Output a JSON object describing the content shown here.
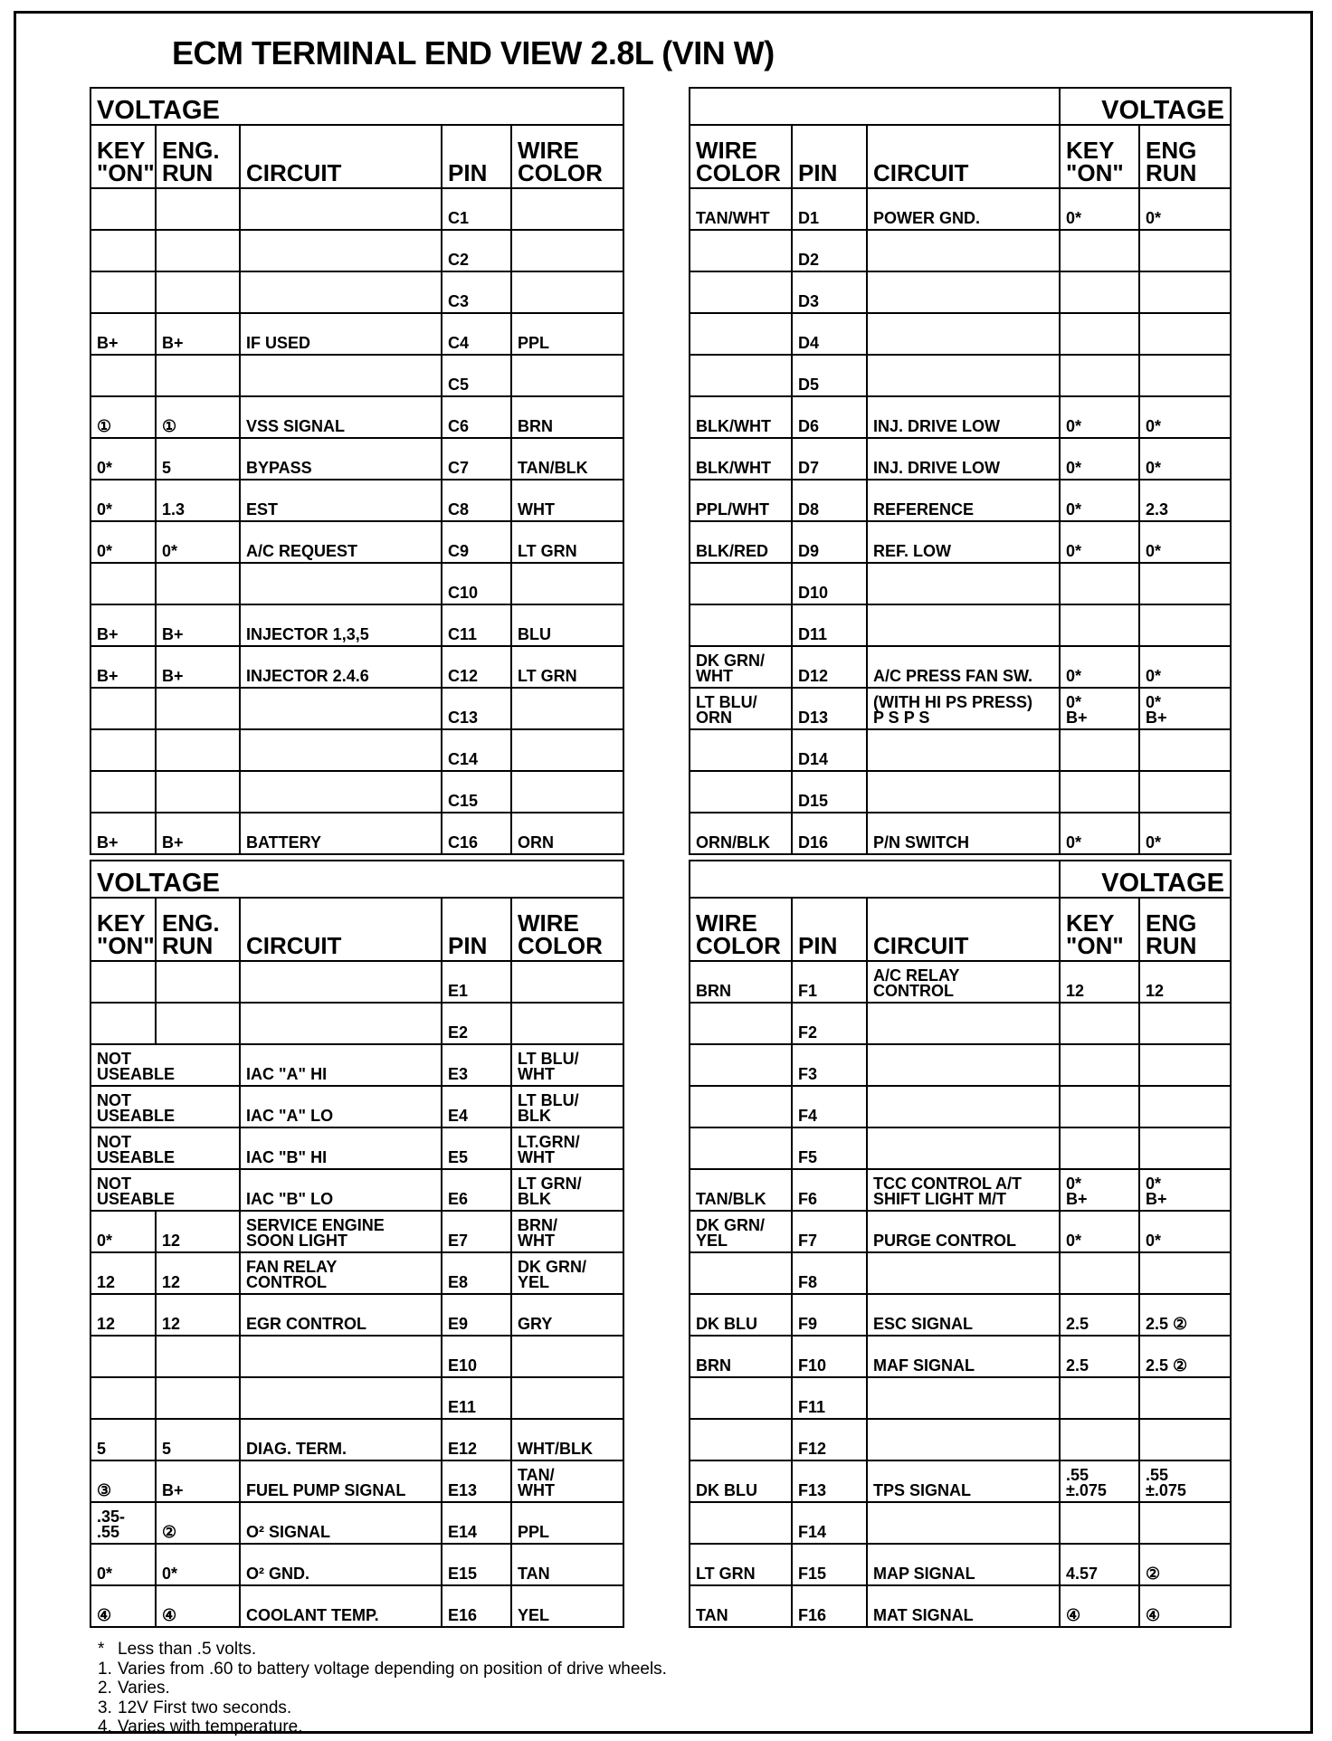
{
  "title": "ECM TERMINAL END VIEW 2.8L (VIN W)",
  "tables": [
    {
      "group_label": "VOLTAGE",
      "columns": [
        "KEY\n\"ON\"",
        "ENG.\nRUN",
        "CIRCUIT",
        "PIN",
        "WIRE\nCOLOR"
      ],
      "rows": [
        [
          "",
          "",
          "",
          "C1",
          ""
        ],
        [
          "",
          "",
          "",
          "C2",
          ""
        ],
        [
          "",
          "",
          "",
          "C3",
          ""
        ],
        [
          "B+",
          "B+",
          "IF USED",
          "C4",
          "PPL"
        ],
        [
          "",
          "",
          "",
          "C5",
          ""
        ],
        [
          "①",
          "①",
          "VSS SIGNAL",
          "C6",
          "BRN"
        ],
        [
          "0*",
          "5",
          "BYPASS",
          "C7",
          "TAN/BLK"
        ],
        [
          "0*",
          "1.3",
          "EST",
          "C8",
          "WHT"
        ],
        [
          "0*",
          "0*",
          "A/C REQUEST",
          "C9",
          "LT GRN"
        ],
        [
          "",
          "",
          "",
          "C10",
          ""
        ],
        [
          "B+",
          "B+",
          "INJECTOR 1,3,5",
          "C11",
          "BLU"
        ],
        [
          "B+",
          "B+",
          "INJECTOR 2.4.6",
          "C12",
          "LT GRN"
        ],
        [
          "",
          "",
          "",
          "C13",
          ""
        ],
        [
          "",
          "",
          "",
          "C14",
          ""
        ],
        [
          "",
          "",
          "",
          "C15",
          ""
        ],
        [
          "B+",
          "B+",
          "BATTERY",
          "C16",
          "ORN"
        ]
      ]
    },
    {
      "group_label": "VOLTAGE",
      "columns": [
        "WIRE\nCOLOR",
        "PIN",
        "CIRCUIT",
        "KEY\n\"ON\"",
        "ENG\nRUN"
      ],
      "rows": [
        [
          "TAN/WHT",
          "D1",
          "POWER GND.",
          "0*",
          "0*"
        ],
        [
          "",
          "D2",
          "",
          "",
          ""
        ],
        [
          "",
          "D3",
          "",
          "",
          ""
        ],
        [
          "",
          "D4",
          "",
          "",
          ""
        ],
        [
          "",
          "D5",
          "",
          "",
          ""
        ],
        [
          "BLK/WHT",
          "D6",
          "INJ. DRIVE LOW",
          "0*",
          "0*"
        ],
        [
          "BLK/WHT",
          "D7",
          "INJ. DRIVE LOW",
          "0*",
          "0*"
        ],
        [
          "PPL/WHT",
          "D8",
          "REFERENCE",
          "0*",
          "2.3"
        ],
        [
          "BLK/RED",
          "D9",
          "REF. LOW",
          "0*",
          "0*"
        ],
        [
          "",
          "D10",
          "",
          "",
          ""
        ],
        [
          "",
          "D11",
          "",
          "",
          ""
        ],
        [
          "DK GRN/\nWHT",
          "D12",
          "A/C PRESS FAN SW.",
          "0*",
          "0*"
        ],
        [
          "LT BLU/\nORN",
          "D13",
          "(WITH HI PS PRESS)\nP S P S",
          "0*\nB+",
          "0*\nB+"
        ],
        [
          "",
          "D14",
          "",
          "",
          ""
        ],
        [
          "",
          "D15",
          "",
          "",
          ""
        ],
        [
          "ORN/BLK",
          "D16",
          "P/N SWITCH",
          "0*",
          "0*"
        ]
      ]
    },
    {
      "group_label": "VOLTAGE",
      "columns": [
        "KEY\n\"ON\"",
        "ENG.\nRUN",
        "CIRCUIT",
        "PIN",
        "WIRE\nCOLOR"
      ],
      "rows": [
        [
          "",
          "",
          "",
          "E1",
          ""
        ],
        [
          "",
          "",
          "",
          "E2",
          ""
        ],
        [
          "NOT\nUSEABLE",
          "IAC \"A\" HI",
          "E3",
          "LT BLU/\nWHT"
        ],
        [
          "NOT\nUSEABLE",
          "IAC \"A\" LO",
          "E4",
          "LT BLU/\nBLK"
        ],
        [
          "NOT\nUSEABLE",
          "IAC \"B\" HI",
          "E5",
          "LT.GRN/\nWHT"
        ],
        [
          "NOT\nUSEABLE",
          "IAC \"B\" LO",
          "E6",
          "LT GRN/\nBLK"
        ],
        [
          "0*",
          "12",
          "SERVICE ENGINE\nSOON LIGHT",
          "E7",
          "BRN/\nWHT"
        ],
        [
          "12",
          "12",
          "FAN RELAY\nCONTROL",
          "E8",
          "DK GRN/\nYEL"
        ],
        [
          "12",
          "12",
          "EGR CONTROL",
          "E9",
          "GRY"
        ],
        [
          "",
          "",
          "",
          "E10",
          ""
        ],
        [
          "",
          "",
          "",
          "E11",
          ""
        ],
        [
          "5",
          "5",
          "DIAG. TERM.",
          "E12",
          "WHT/BLK"
        ],
        [
          "③",
          "B+",
          "FUEL PUMP SIGNAL",
          "E13",
          "TAN/\nWHT"
        ],
        [
          ".35-\n.55",
          "②",
          "O² SIGNAL",
          "E14",
          "PPL"
        ],
        [
          "0*",
          "0*",
          "O² GND.",
          "E15",
          "TAN"
        ],
        [
          "④",
          "④",
          "COOLANT TEMP.",
          "E16",
          "YEL"
        ]
      ]
    },
    {
      "group_label": "VOLTAGE",
      "columns": [
        "WIRE\nCOLOR",
        "PIN",
        "CIRCUIT",
        "KEY\n\"ON\"",
        "ENG\nRUN"
      ],
      "rows": [
        [
          "BRN",
          "F1",
          "A/C RELAY\nCONTROL",
          "12",
          "12"
        ],
        [
          "",
          "F2",
          "",
          "",
          ""
        ],
        [
          "",
          "F3",
          "",
          "",
          ""
        ],
        [
          "",
          "F4",
          "",
          "",
          ""
        ],
        [
          "",
          "F5",
          "",
          "",
          ""
        ],
        [
          "TAN/BLK",
          "F6",
          "TCC CONTROL A/T\nSHIFT LIGHT M/T",
          "0*\nB+",
          "0*\nB+"
        ],
        [
          "DK GRN/\nYEL",
          "F7",
          "PURGE CONTROL",
          "0*",
          "0*"
        ],
        [
          "",
          "F8",
          "",
          "",
          ""
        ],
        [
          "DK BLU",
          "F9",
          "ESC SIGNAL",
          "2.5",
          "2.5 ②"
        ],
        [
          "BRN",
          "F10",
          "MAF SIGNAL",
          "2.5",
          "2.5 ②"
        ],
        [
          "",
          "F11",
          "",
          "",
          ""
        ],
        [
          "",
          "F12",
          "",
          "",
          ""
        ],
        [
          "DK BLU",
          "F13",
          "TPS SIGNAL",
          ".55\n±.075",
          ".55\n±.075"
        ],
        [
          "",
          "F14",
          "",
          "",
          ""
        ],
        [
          "LT GRN",
          "F15",
          "MAP SIGNAL",
          "4.57",
          "②"
        ],
        [
          "TAN",
          "F16",
          "MAT SIGNAL",
          "④",
          "④"
        ]
      ]
    }
  ],
  "footnotes": [
    {
      "marker": "*",
      "text": "Less than .5 volts."
    },
    {
      "marker": "1.",
      "text": "Varies from .60 to battery voltage depending on position of drive wheels."
    },
    {
      "marker": "2.",
      "text": "Varies."
    },
    {
      "marker": "3.",
      "text": "12V First two seconds."
    },
    {
      "marker": "4.",
      "text": "Varies with temperature."
    }
  ]
}
